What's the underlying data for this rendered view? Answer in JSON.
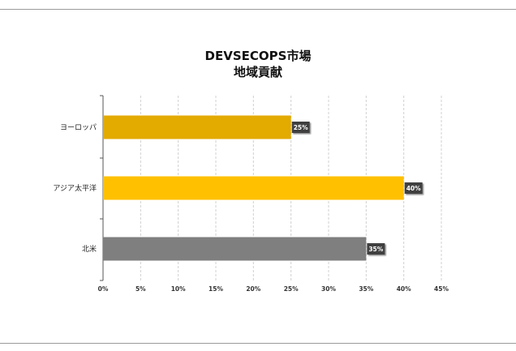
{
  "chart_data": {
    "type": "bar",
    "orientation": "horizontal",
    "title": [
      "DEVSECOPS市場",
      "地域貢献"
    ],
    "categories": [
      "ヨーロッパ",
      "アジア太平洋",
      "北米"
    ],
    "values": [
      25,
      40,
      35
    ],
    "data_labels": [
      "25%",
      "40%",
      "35%"
    ],
    "bar_colors": [
      "#E3AA00",
      "#FFC000",
      "#7F7F7F"
    ],
    "xlim": [
      0,
      45
    ],
    "xticks": [
      "0%",
      "5%",
      "10%",
      "15%",
      "20%",
      "25%",
      "30%",
      "35%",
      "40%",
      "45%"
    ],
    "xtick_values": [
      0,
      5,
      10,
      15,
      20,
      25,
      30,
      35,
      40,
      45
    ],
    "grid": "vertical-dashed",
    "legend": "none"
  }
}
